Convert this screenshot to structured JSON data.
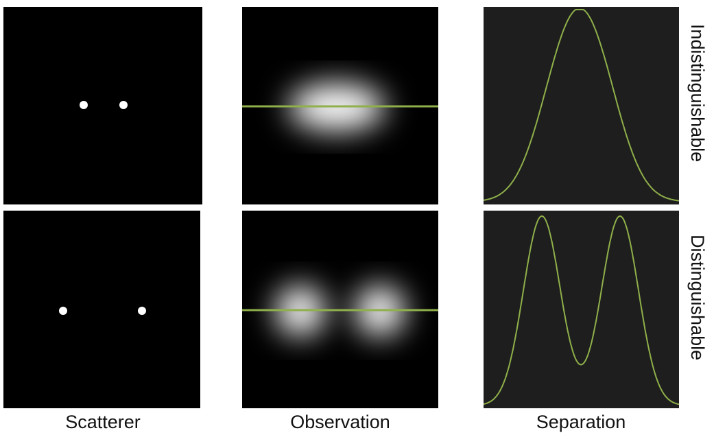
{
  "columns": {
    "scatterer": "Scatterer",
    "observation": "Observation",
    "separation": "Separation"
  },
  "rows": {
    "top": "Indistinguishable",
    "bottom": "Distinguishable"
  },
  "colors": {
    "profile_line": "#8fb04a",
    "panel_bg": "#000000",
    "profile_bg": "#1e1e1e",
    "point": "#ffffff"
  }
}
